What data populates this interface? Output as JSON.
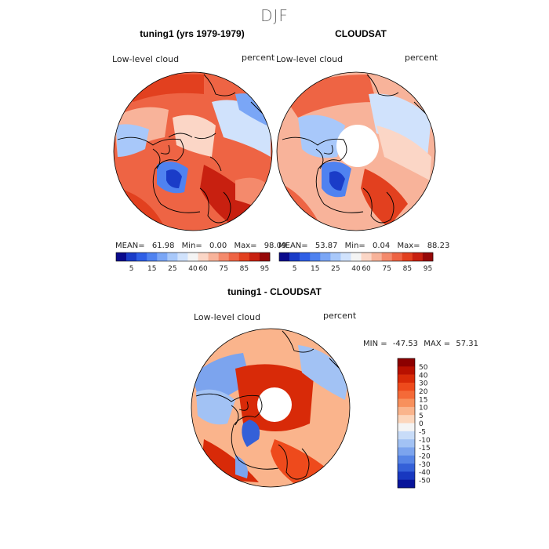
{
  "figure": {
    "season": "DJF",
    "panels": [
      {
        "title": "tuning1 (yrs 1979-1979)",
        "field": "Low-level cloud",
        "units": "percent",
        "mean_label": "MEAN=",
        "mean": "61.98",
        "min_label": "Min=",
        "min": "0.00",
        "max_label": "Max=",
        "max": "98.09"
      },
      {
        "title": "CLOUDSAT",
        "field": "Low-level cloud",
        "units": "percent",
        "mean_label": "MEAN=",
        "mean": "53.87",
        "min_label": "Min=",
        "min": "0.04",
        "max_label": "Max=",
        "max": "88.23"
      }
    ],
    "diff": {
      "title": "tuning1 - CLOUDSAT",
      "field": "Low-level cloud",
      "units": "percent",
      "min_label": "MIN =",
      "min": "-47.53",
      "max_label": "MAX =",
      "max": "57.31"
    }
  },
  "colorbars": {
    "field": {
      "ticks": [
        "5",
        "15",
        "25",
        "40",
        "60",
        "75",
        "85",
        "95"
      ],
      "colors": [
        "#0a0a8c",
        "#1a3cc8",
        "#2f5fe6",
        "#4f82f0",
        "#7aa6f6",
        "#a8c8fa",
        "#d0e2fc",
        "#f4f4f4",
        "#fbd6c6",
        "#f8b39a",
        "#f48a6c",
        "#ee6444",
        "#e2401f",
        "#c82010",
        "#960808"
      ]
    },
    "diff": {
      "ticks": [
        "50",
        "40",
        "30",
        "20",
        "15",
        "10",
        "5",
        "0",
        "-5",
        "-10",
        "-15",
        "-20",
        "-30",
        "-40",
        "-50"
      ],
      "colors": [
        "#8c0000",
        "#b81000",
        "#d82a08",
        "#ee4a1c",
        "#f46a38",
        "#f8905c",
        "#fab48c",
        "#fcd6bc",
        "#f4f4f4",
        "#c8dcf8",
        "#a2c2f4",
        "#7ca4ee",
        "#5684e6",
        "#3460d8",
        "#1838c0",
        "#08149a"
      ]
    }
  },
  "map_colors": {
    "coast": "#000000",
    "pole_hole": "#ffffff"
  }
}
